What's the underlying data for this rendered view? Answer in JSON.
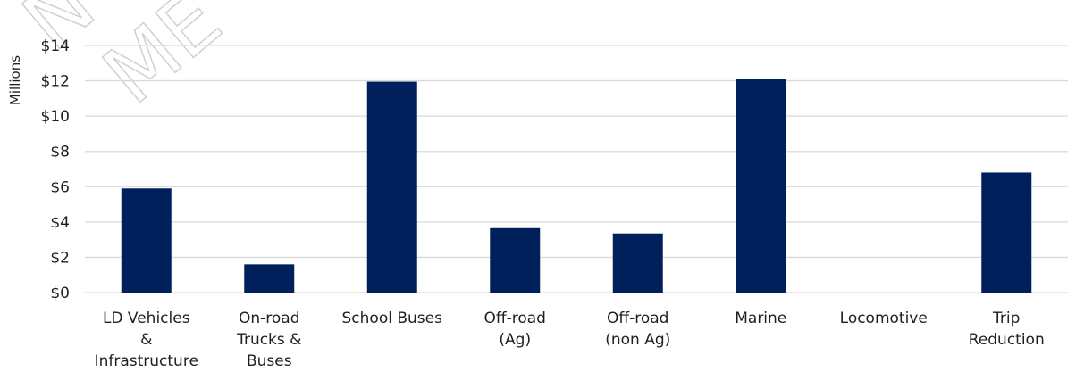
{
  "watermark": {
    "line1": "N",
    "line2": "ME"
  },
  "chart_data": {
    "type": "bar",
    "ylabel": "Millions",
    "ylim": [
      0,
      14
    ],
    "yticks": [
      {
        "value": 0,
        "label": "$0"
      },
      {
        "value": 2,
        "label": "$2"
      },
      {
        "value": 4,
        "label": "$4"
      },
      {
        "value": 6,
        "label": "$6"
      },
      {
        "value": 8,
        "label": "$8"
      },
      {
        "value": 10,
        "label": "$10"
      },
      {
        "value": 12,
        "label": "$12"
      },
      {
        "value": 14,
        "label": "$14"
      }
    ],
    "grid": true,
    "bar_color": "#00205b",
    "grid_color": "#d9d9d9",
    "categories": [
      {
        "name": "LD Vehicles & Infrastructure",
        "lines": [
          "LD Vehicles",
          "&",
          "Infrastructure"
        ],
        "value": 5.9
      },
      {
        "name": "On-road Trucks & Buses",
        "lines": [
          "On-road",
          "Trucks &",
          "Buses"
        ],
        "value": 1.6
      },
      {
        "name": "School Buses",
        "lines": [
          "School Buses"
        ],
        "value": 11.95
      },
      {
        "name": "Off-road (Ag)",
        "lines": [
          "Off-road",
          "(Ag)"
        ],
        "value": 3.65
      },
      {
        "name": "Off-road (non Ag)",
        "lines": [
          "Off-road",
          "(non Ag)"
        ],
        "value": 3.35
      },
      {
        "name": "Marine",
        "lines": [
          "Marine"
        ],
        "value": 12.1
      },
      {
        "name": "Locomotive",
        "lines": [
          "Locomotive"
        ],
        "value": 0
      },
      {
        "name": "Trip Reduction",
        "lines": [
          "Trip",
          "Reduction"
        ],
        "value": 6.8
      }
    ]
  }
}
